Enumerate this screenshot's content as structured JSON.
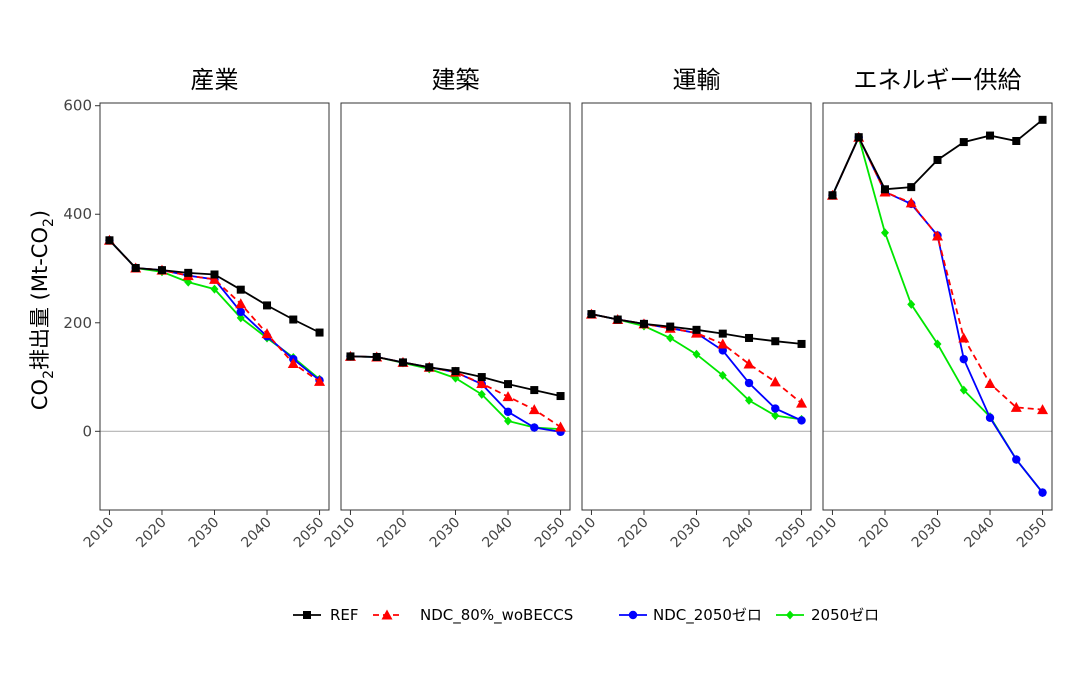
{
  "chart_data": {
    "type": "line",
    "ylabel_parts": [
      "CO",
      "2",
      "排出量 (Mt-CO",
      "2",
      ")"
    ],
    "x": [
      2010,
      2015,
      2020,
      2025,
      2030,
      2035,
      2040,
      2045,
      2050
    ],
    "x_ticks": [
      2010,
      2020,
      2030,
      2040,
      2050
    ],
    "y_ticks": [
      0,
      200,
      400,
      600
    ],
    "ylim": [
      -145,
      605
    ],
    "zero_line": true,
    "legend_position": "bottom",
    "series_styles": [
      {
        "name": "REF",
        "color": "#000000",
        "dash": "",
        "marker": "square"
      },
      {
        "name": "NDC_80%_woBECCS",
        "color": "#ff0000",
        "dash": "6,4",
        "marker": "triangle"
      },
      {
        "name": "NDC_2050ゼロ",
        "color": "#0000ff",
        "dash": "",
        "marker": "circle"
      },
      {
        "name": "2050ゼロ",
        "color": "#00e600",
        "dash": "",
        "marker": "diamond"
      }
    ],
    "panels": [
      {
        "title": "産業",
        "series": [
          {
            "name": "REF",
            "values": [
              352,
              301,
              297,
              292,
              289,
              261,
              232,
              206,
              182
            ]
          },
          {
            "name": "NDC_80%_woBECCS",
            "values": [
              352,
              301,
              297,
              287,
              280,
              235,
              180,
              125,
              92
            ]
          },
          {
            "name": "NDC_2050ゼロ",
            "values": [
              352,
              301,
              297,
              287,
              280,
              220,
              175,
              133,
              94
            ]
          },
          {
            "name": "2050ゼロ",
            "values": [
              352,
              301,
              294,
              275,
              262,
              209,
              172,
              136,
              96
            ]
          }
        ]
      },
      {
        "title": "建築",
        "series": [
          {
            "name": "REF",
            "values": [
              138,
              137,
              127,
              118,
              111,
              100,
              87,
              76,
              65
            ]
          },
          {
            "name": "NDC_80%_woBECCS",
            "values": [
              138,
              137,
              127,
              118,
              109,
              88,
              64,
              40,
              8
            ]
          },
          {
            "name": "NDC_2050ゼロ",
            "values": [
              138,
              137,
              127,
              118,
              109,
              87,
              36,
              7,
              -1
            ]
          },
          {
            "name": "2050ゼロ",
            "values": [
              138,
              137,
              126,
              115,
              98,
              68,
              19,
              7,
              4
            ]
          }
        ]
      },
      {
        "title": "運輸",
        "series": [
          {
            "name": "REF",
            "values": [
              216,
              206,
              198,
              193,
              187,
              180,
              172,
              166,
              161
            ]
          },
          {
            "name": "NDC_80%_woBECCS",
            "values": [
              216,
              206,
              198,
              190,
              181,
              161,
              124,
              91,
              52
            ]
          },
          {
            "name": "NDC_2050ゼロ",
            "values": [
              216,
              206,
              198,
              190,
              181,
              149,
              89,
              42,
              20
            ]
          },
          {
            "name": "2050ゼロ",
            "values": [
              216,
              206,
              194,
              172,
              142,
              103,
              57,
              29,
              22
            ]
          }
        ]
      },
      {
        "title": "エネルギー供給",
        "series": [
          {
            "name": "REF",
            "values": [
              435,
              542,
              446,
              450,
              500,
              533,
              545,
              535,
              574
            ]
          },
          {
            "name": "NDC_80%_woBECCS",
            "values": [
              435,
              542,
              441,
              421,
              360,
              172,
              88,
              44,
              40
            ]
          },
          {
            "name": "NDC_2050ゼロ",
            "values": [
              435,
              542,
              441,
              419,
              361,
              133,
              25,
              -52,
              -113
            ]
          },
          {
            "name": "2050ゼロ",
            "values": [
              435,
              542,
              366,
              234,
              161,
              76,
              27,
              -52,
              -113
            ]
          }
        ]
      }
    ]
  }
}
